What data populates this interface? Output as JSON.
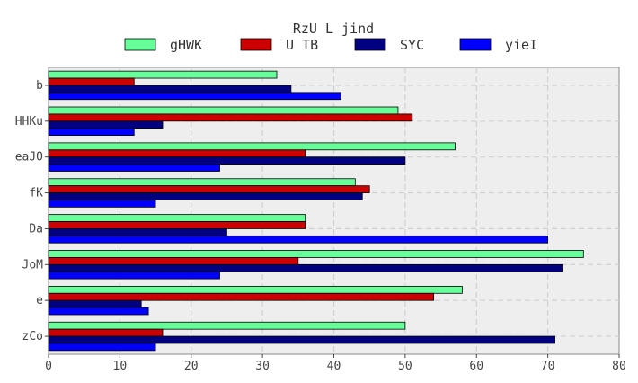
{
  "chart_data": {
    "type": "bar",
    "orientation": "horizontal",
    "title": "RzU L jind",
    "categories": [
      "b",
      "HHKu",
      "eaJO",
      "fK",
      "Da",
      "JoM",
      "e",
      "zCo"
    ],
    "series": [
      {
        "name": "gHWK",
        "color": "#66ff99",
        "values": [
          32,
          49,
          57,
          43,
          36,
          75,
          58,
          50
        ]
      },
      {
        "name": "U TB",
        "color": "#cc0000",
        "values": [
          12,
          51,
          36,
          45,
          36,
          35,
          54,
          16
        ]
      },
      {
        "name": "SYC",
        "color": "#000080",
        "values": [
          34,
          16,
          50,
          44,
          25,
          72,
          13,
          71
        ]
      },
      {
        "name": "yieI",
        "color": "#0000ff",
        "values": [
          41,
          12,
          24,
          15,
          70,
          24,
          14,
          15
        ]
      }
    ],
    "xlim": [
      0,
      80
    ],
    "xticks": [
      0,
      10,
      20,
      30,
      40,
      50,
      60,
      70,
      80
    ],
    "xlabel": "",
    "ylabel": "",
    "grid": true,
    "legend_position": "top"
  }
}
